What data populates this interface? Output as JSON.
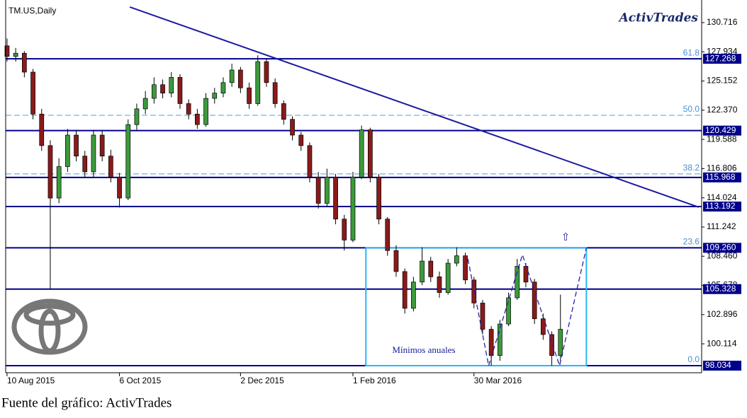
{
  "chart_data": {
    "type": "candlestick",
    "title": "TM.US,Daily",
    "brand": "ActivTrades",
    "source": "Fuente del gráfico: ActivTrades",
    "annotation": "Mínimos anuales",
    "categories": [
      "10 Aug 2015",
      null,
      null,
      null,
      null,
      null,
      null,
      null,
      null,
      null,
      null,
      null,
      null,
      "6 Oct 2015",
      null,
      null,
      null,
      null,
      null,
      null,
      null,
      null,
      null,
      null,
      null,
      null,
      null,
      "2 Dec 2015",
      null,
      null,
      null,
      null,
      null,
      null,
      null,
      null,
      null,
      null,
      null,
      null,
      "1 Feb 2016",
      null,
      null,
      null,
      null,
      null,
      null,
      null,
      null,
      null,
      null,
      null,
      null,
      null,
      "30 Mar 2016",
      null,
      null,
      null,
      null,
      null,
      null,
      null,
      null,
      null,
      null
    ],
    "ohlc": [
      [
        128.5,
        129.2,
        127.0,
        127.5
      ],
      [
        127.5,
        128.3,
        127.0,
        127.8
      ],
      [
        127.8,
        128.0,
        125.5,
        126.0
      ],
      [
        126.0,
        126.3,
        121.5,
        122.0
      ],
      [
        122.0,
        122.5,
        118.5,
        119.0
      ],
      [
        119.0,
        119.5,
        105.3,
        114.0
      ],
      [
        114.0,
        117.8,
        113.5,
        117.0
      ],
      [
        117.0,
        120.6,
        116.5,
        120.0
      ],
      [
        120.0,
        120.5,
        117.5,
        118.0
      ],
      [
        118.0,
        118.5,
        116.0,
        116.5
      ],
      [
        116.5,
        120.5,
        116.0,
        120.0
      ],
      [
        120.0,
        120.4,
        117.5,
        118.0
      ],
      [
        118.0,
        118.6,
        115.5,
        116.0
      ],
      [
        116.0,
        116.4,
        113.1,
        114.0
      ],
      [
        114.0,
        121.5,
        113.8,
        121.0
      ],
      [
        121.0,
        123.0,
        120.5,
        122.5
      ],
      [
        122.5,
        124.2,
        122.0,
        123.5
      ],
      [
        123.5,
        125.5,
        123.0,
        124.8
      ],
      [
        124.8,
        125.3,
        123.5,
        124.0
      ],
      [
        124.0,
        126.0,
        123.6,
        125.5
      ],
      [
        125.5,
        125.8,
        122.5,
        123.0
      ],
      [
        123.0,
        123.4,
        121.5,
        122.0
      ],
      [
        122.0,
        122.5,
        120.6,
        121.0
      ],
      [
        121.0,
        124.0,
        120.8,
        123.5
      ],
      [
        123.5,
        124.5,
        123.0,
        124.0
      ],
      [
        124.0,
        125.5,
        123.6,
        125.0
      ],
      [
        125.0,
        126.8,
        124.6,
        126.2
      ],
      [
        126.2,
        126.5,
        124.0,
        124.5
      ],
      [
        124.5,
        125.0,
        122.5,
        123.0
      ],
      [
        123.0,
        127.6,
        122.8,
        127.0
      ],
      [
        127.0,
        127.3,
        124.6,
        125.0
      ],
      [
        125.0,
        125.4,
        122.6,
        123.0
      ],
      [
        123.0,
        123.3,
        121.0,
        121.5
      ],
      [
        121.5,
        121.8,
        119.5,
        120.0
      ],
      [
        120.0,
        120.3,
        118.5,
        119.0
      ],
      [
        119.0,
        119.3,
        115.5,
        116.0
      ],
      [
        116.0,
        116.5,
        113.0,
        113.5
      ],
      [
        113.5,
        116.8,
        113.2,
        116.0
      ],
      [
        116.0,
        116.3,
        111.5,
        112.0
      ],
      [
        112.0,
        112.4,
        109.0,
        110.0
      ],
      [
        110.0,
        116.5,
        109.8,
        116.0
      ],
      [
        116.0,
        120.9,
        115.8,
        120.5
      ],
      [
        120.5,
        120.7,
        115.5,
        116.0
      ],
      [
        116.0,
        116.3,
        111.5,
        112.0
      ],
      [
        112.0,
        112.2,
        108.5,
        109.0
      ],
      [
        109.0,
        109.5,
        106.5,
        107.0
      ],
      [
        107.0,
        107.3,
        103.0,
        103.5
      ],
      [
        103.5,
        106.5,
        103.2,
        106.0
      ],
      [
        106.0,
        109.3,
        105.7,
        108.0
      ],
      [
        108.0,
        108.4,
        106.0,
        106.5
      ],
      [
        106.5,
        107.0,
        104.5,
        105.0
      ],
      [
        105.0,
        108.2,
        104.8,
        107.8
      ],
      [
        107.8,
        109.3,
        107.5,
        108.5
      ],
      [
        108.5,
        108.8,
        105.8,
        106.2
      ],
      [
        106.2,
        106.5,
        103.5,
        104.0
      ],
      [
        104.0,
        104.3,
        101.0,
        101.5
      ],
      [
        101.5,
        101.8,
        98.034,
        99.0
      ],
      [
        99.0,
        102.4,
        98.5,
        102.0
      ],
      [
        102.0,
        105.0,
        101.8,
        104.5
      ],
      [
        104.5,
        108.2,
        104.3,
        107.5
      ],
      [
        107.5,
        107.8,
        105.5,
        106.0
      ],
      [
        106.0,
        106.3,
        102.0,
        102.5
      ],
      [
        102.5,
        103.0,
        100.5,
        101.0
      ],
      [
        101.0,
        101.3,
        98.034,
        99.0
      ],
      [
        99.0,
        104.8,
        98.5,
        101.5
      ]
    ],
    "up_color": "#3c9a3c",
    "down_color": "#8b1a1a",
    "xlim": [
      -0.16,
      80.33
    ],
    "ylim": [
      97.36,
      132.87
    ],
    "yticks": [
      130.716,
      127.934,
      125.152,
      {
        "value": 122.37,
        "label": "122.370"
      },
      119.588,
      116.806,
      114.024,
      111.242,
      {
        "value": 108.46,
        "label": "108.460"
      },
      105.678,
      102.896,
      100.114
    ],
    "levels": [
      127.268,
      120.429,
      115.968,
      113.192,
      {
        "value": 109.26,
        "label": "109.260"
      },
      105.328,
      98.034
    ],
    "level_color": "#00008b",
    "fib": [
      {
        "label": "61.8",
        "value": 127.268
      },
      {
        "label": "50.0",
        "value": 121.89
      },
      {
        "label": "38.2",
        "value": 116.3
      },
      {
        "label": "23.6",
        "value": 109.26
      },
      {
        "label": "0.0",
        "value": 98.034
      }
    ],
    "trendline": {
      "x": [
        14.2,
        80.0
      ],
      "y": [
        132.2,
        113.13
      ]
    },
    "box": {
      "x": [
        41.5,
        67.0
      ],
      "y": [
        98.034,
        109.26
      ],
      "color": "#29b6f6"
    },
    "pattern": {
      "x": [
        53.3,
        55.7,
        59.6,
        63.9,
        67.0
      ],
      "y": [
        108.2,
        98.034,
        108.6,
        98.034,
        109.26
      ]
    }
  }
}
